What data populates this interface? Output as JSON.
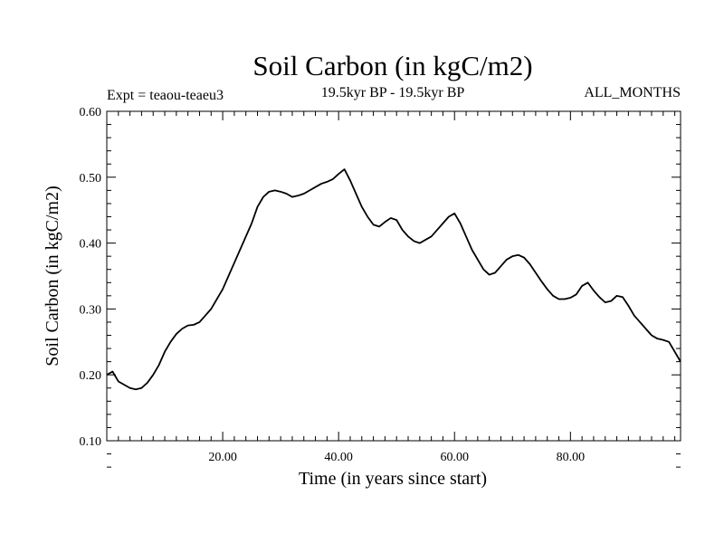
{
  "chart_data": {
    "type": "line",
    "title": "Soil Carbon (in kgC/m2)",
    "subtitle_left": "Expt = teaou-teaeu3",
    "subtitle_center": "19.5kyr BP - 19.5kyr BP",
    "subtitle_right": "ALL_MONTHS",
    "xlabel": "Time (in years since start)",
    "ylabel": "Soil Carbon (in kgC/m2)",
    "xlim": [
      0,
      99
    ],
    "ylim": [
      0.1,
      0.6
    ],
    "xticks": [
      {
        "value": 20,
        "label": "20.00"
      },
      {
        "value": 40,
        "label": "40.00"
      },
      {
        "value": 60,
        "label": "60.00"
      },
      {
        "value": 80,
        "label": "80.00"
      }
    ],
    "yticks": [
      {
        "value": 0.1,
        "label": "0.10"
      },
      {
        "value": 0.2,
        "label": "0.20"
      },
      {
        "value": 0.3,
        "label": "0.30"
      },
      {
        "value": 0.4,
        "label": "0.40"
      },
      {
        "value": 0.5,
        "label": "0.50"
      },
      {
        "value": 0.6,
        "label": "0.60"
      }
    ],
    "series": [
      {
        "name": "Soil Carbon",
        "x": [
          0,
          1,
          2,
          3,
          4,
          5,
          6,
          7,
          8,
          9,
          10,
          11,
          12,
          13,
          14,
          15,
          16,
          17,
          18,
          19,
          20,
          21,
          22,
          23,
          24,
          25,
          26,
          27,
          28,
          29,
          30,
          31,
          32,
          33,
          34,
          35,
          36,
          37,
          38,
          39,
          40,
          41,
          42,
          43,
          44,
          45,
          46,
          47,
          48,
          49,
          50,
          51,
          52,
          53,
          54,
          55,
          56,
          57,
          58,
          59,
          60,
          61,
          62,
          63,
          64,
          65,
          66,
          67,
          68,
          69,
          70,
          71,
          72,
          73,
          74,
          75,
          76,
          77,
          78,
          79,
          80,
          81,
          82,
          83,
          84,
          85,
          86,
          87,
          88,
          89,
          90,
          91,
          92,
          93,
          94,
          95,
          96,
          97,
          98,
          99
        ],
        "values": [
          0.2,
          0.205,
          0.19,
          0.185,
          0.18,
          0.178,
          0.18,
          0.188,
          0.2,
          0.215,
          0.235,
          0.25,
          0.262,
          0.27,
          0.275,
          0.276,
          0.28,
          0.29,
          0.3,
          0.315,
          0.33,
          0.35,
          0.37,
          0.39,
          0.41,
          0.43,
          0.455,
          0.47,
          0.478,
          0.48,
          0.478,
          0.475,
          0.47,
          0.472,
          0.475,
          0.48,
          0.485,
          0.49,
          0.493,
          0.497,
          0.505,
          0.512,
          0.495,
          0.475,
          0.455,
          0.44,
          0.428,
          0.425,
          0.432,
          0.438,
          0.435,
          0.42,
          0.41,
          0.403,
          0.4,
          0.405,
          0.41,
          0.42,
          0.43,
          0.44,
          0.445,
          0.43,
          0.41,
          0.39,
          0.375,
          0.36,
          0.352,
          0.355,
          0.365,
          0.375,
          0.38,
          0.382,
          0.378,
          0.368,
          0.355,
          0.342,
          0.33,
          0.32,
          0.315,
          0.315,
          0.317,
          0.322,
          0.335,
          0.34,
          0.328,
          0.318,
          0.31,
          0.312,
          0.32,
          0.318,
          0.305,
          0.29,
          0.28,
          0.27,
          0.26,
          0.255,
          0.253,
          0.25,
          0.235,
          0.22
        ]
      }
    ]
  }
}
